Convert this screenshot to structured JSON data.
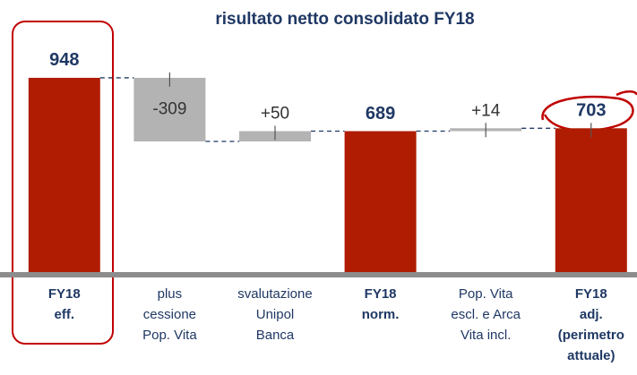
{
  "chart_data": {
    "type": "waterfall",
    "title": "risultato netto consolidato FY18",
    "categories": [
      [
        "FY18",
        "eff."
      ],
      [
        "plus",
        "cessione",
        "Pop. Vita"
      ],
      [
        "svalutazione",
        "Unipol",
        "Banca"
      ],
      [
        "FY18",
        "norm."
      ],
      [
        "Pop. Vita",
        "escl. e Arca",
        "Vita incl."
      ],
      [
        "FY18",
        "adj.",
        "(perimetro",
        "attuale)"
      ]
    ],
    "values": [
      948,
      -309,
      50,
      689,
      14,
      703
    ],
    "value_labels": [
      "948",
      "-309",
      "+50",
      "689",
      "+14",
      "703"
    ],
    "bar_kinds": [
      "total",
      "delta",
      "delta",
      "total",
      "delta",
      "total"
    ],
    "total_color": "#b01c02",
    "delta_color": "#b3b3b3"
  }
}
